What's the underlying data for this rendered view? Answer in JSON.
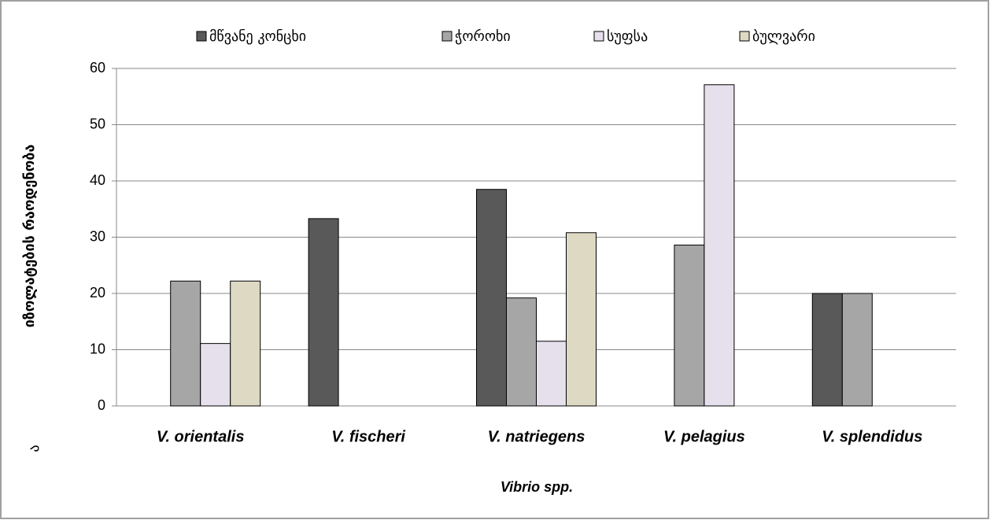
{
  "chart_data": {
    "type": "bar",
    "categories": [
      "V. orientalis",
      "V. fischeri",
      "V. natriegens",
      "V. pelagius",
      "V. splendidus"
    ],
    "series": [
      {
        "name": "მწვანე კონცხი",
        "color": "#595959",
        "values": [
          0,
          33.3,
          38.5,
          0,
          20
        ]
      },
      {
        "name": "ჭოროხი",
        "color": "#a6a6a6",
        "values": [
          22.2,
          0,
          19.2,
          28.6,
          20
        ]
      },
      {
        "name": "სუფსა",
        "color": "#e6e0ec",
        "values": [
          11.1,
          0,
          11.5,
          57.1,
          0
        ]
      },
      {
        "name": "ბულვარი",
        "color": "#ddd9c3",
        "values": [
          22.2,
          0,
          30.8,
          0,
          0
        ]
      }
    ],
    "y_label": "იზოლატების რაოდენობა",
    "x_label": "Vibrio spp.",
    "annotation": "ა",
    "ylim": [
      0,
      60
    ],
    "yticks": [
      0,
      10,
      20,
      30,
      40,
      50,
      60
    ],
    "grid": true,
    "legend": "top"
  }
}
